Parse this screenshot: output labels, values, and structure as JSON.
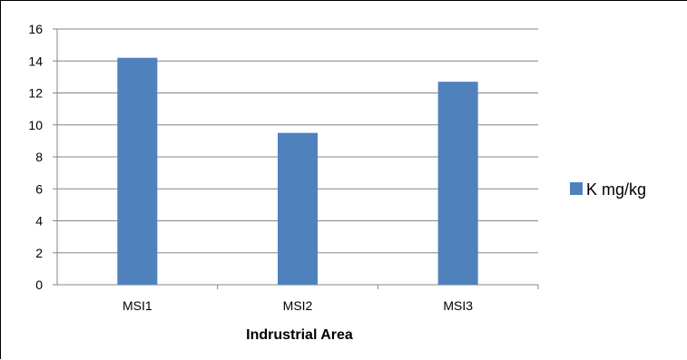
{
  "chart_data": {
    "type": "bar",
    "categories": [
      "MSI1",
      "MSI2",
      "MSI3"
    ],
    "series": [
      {
        "name": "K mg/kg",
        "values": [
          14.2,
          9.5,
          12.7
        ],
        "color": "#4f81bd"
      }
    ],
    "xlabel": "Indrustrial Area",
    "ylabel": "",
    "ylim": [
      0,
      16
    ],
    "yticks": [
      0,
      2,
      4,
      6,
      8,
      10,
      12,
      14,
      16
    ],
    "grid": true,
    "legend_position": "right"
  }
}
